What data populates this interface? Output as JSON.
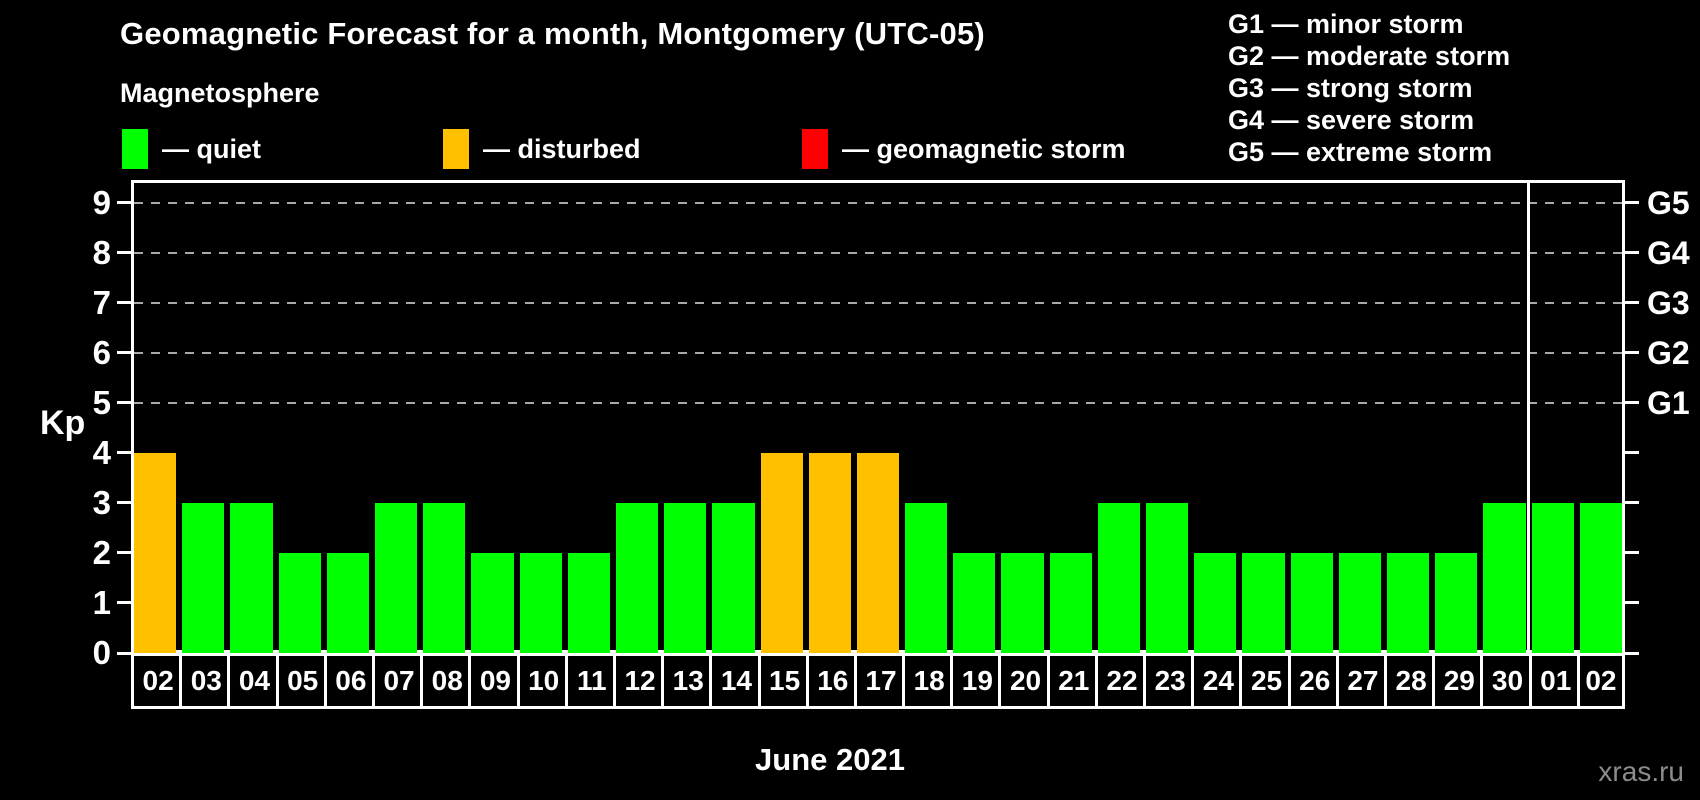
{
  "title": "Geomagnetic Forecast for a month, Montgomery (UTC-05)",
  "subtitle": "Magnetosphere",
  "legend": {
    "items": [
      {
        "key": "quiet",
        "label": "— quiet",
        "color": "#00ff00"
      },
      {
        "key": "disturbed",
        "label": "— disturbed",
        "color": "#ffc000"
      },
      {
        "key": "storm",
        "label": "— geomagnetic storm",
        "color": "#ff0000"
      }
    ]
  },
  "g_scale_legend": {
    "items": [
      "G1 — minor storm",
      "G2 — moderate storm",
      "G3 — strong storm",
      "G4 — severe storm",
      "G5 — extreme storm"
    ]
  },
  "chart_data": {
    "type": "bar",
    "title": "Geomagnetic Forecast for a month, Montgomery (UTC-05)",
    "ylabel": "Kp",
    "xlabel": "June 2021",
    "ylim": [
      0,
      9.45
    ],
    "yticks": [
      0,
      1,
      2,
      3,
      4,
      5,
      6,
      7,
      8,
      9
    ],
    "grid_levels": [
      5,
      6,
      7,
      8,
      9
    ],
    "grid_style": "dashed gray horizontal lines at storm levels only",
    "legend_position": "top",
    "right_axis": [
      {
        "label": "G1",
        "kp": 5
      },
      {
        "label": "G2",
        "kp": 6
      },
      {
        "label": "G3",
        "kp": 7
      },
      {
        "label": "G4",
        "kp": 8
      },
      {
        "label": "G5",
        "kp": 9
      }
    ],
    "categories": [
      "02",
      "03",
      "04",
      "05",
      "06",
      "07",
      "08",
      "09",
      "10",
      "11",
      "12",
      "13",
      "14",
      "15",
      "16",
      "17",
      "18",
      "19",
      "20",
      "21",
      "22",
      "23",
      "24",
      "25",
      "26",
      "27",
      "28",
      "29",
      "30",
      "01",
      "02"
    ],
    "values": [
      4,
      3,
      3,
      2,
      2,
      3,
      3,
      2,
      2,
      2,
      3,
      3,
      3,
      4,
      4,
      4,
      3,
      2,
      2,
      2,
      3,
      3,
      2,
      2,
      2,
      2,
      2,
      2,
      3,
      3,
      3
    ],
    "statuses": [
      "disturbed",
      "quiet",
      "quiet",
      "quiet",
      "quiet",
      "quiet",
      "quiet",
      "quiet",
      "quiet",
      "quiet",
      "quiet",
      "quiet",
      "quiet",
      "disturbed",
      "disturbed",
      "disturbed",
      "quiet",
      "quiet",
      "quiet",
      "quiet",
      "quiet",
      "quiet",
      "quiet",
      "quiet",
      "quiet",
      "quiet",
      "quiet",
      "quiet",
      "quiet",
      "quiet",
      "quiet"
    ],
    "status_colors": {
      "quiet": "#00ff00",
      "disturbed": "#ffc000",
      "storm": "#ff0000"
    },
    "month_separator_after_index": 28
  },
  "footer": {
    "watermark": "xras.ru"
  },
  "colors": {
    "background": "#000000",
    "axis": "#ffffff",
    "grid": "#a9a9a9",
    "watermark": "#8c8c8c"
  }
}
